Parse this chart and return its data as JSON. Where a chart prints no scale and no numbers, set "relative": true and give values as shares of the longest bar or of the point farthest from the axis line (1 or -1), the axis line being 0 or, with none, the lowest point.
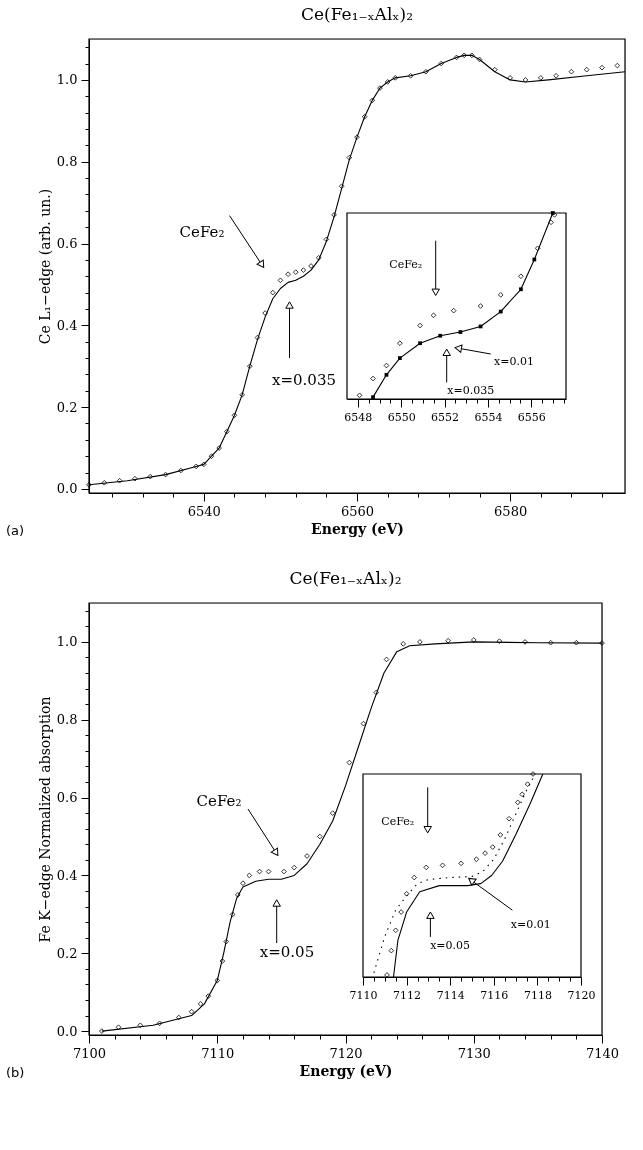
{
  "chart_data": [
    {
      "type": "line",
      "title": "Ce(Fe₁₋ₓAlₓ)₂",
      "xlabel": "Energy (eV)",
      "ylabel": "Ce L₁−edge (arb. un.)",
      "xlim": [
        6525,
        6595
      ],
      "ylim": [
        -0.01,
        1.1
      ],
      "xticks": [
        {
          "value": 6528,
          "label": null
        },
        {
          "value": 6532,
          "label": null
        },
        {
          "value": 6536,
          "label": null
        },
        6540,
        {
          "value": 6544,
          "label": null
        },
        {
          "value": 6548,
          "label": null
        },
        {
          "value": 6552,
          "label": null
        },
        {
          "value": 6556,
          "label": null
        },
        6560,
        {
          "value": 6564,
          "label": null
        },
        {
          "value": 6568,
          "label": null
        },
        {
          "value": 6572,
          "label": null
        },
        {
          "value": 6576,
          "label": null
        },
        6580,
        {
          "value": 6584,
          "label": null
        },
        {
          "value": 6588,
          "label": null
        },
        {
          "value": 6592,
          "label": null
        }
      ],
      "yticks": [
        {
          "value": 0,
          "label": "0.0"
        },
        {
          "value": 0.04,
          "label": null
        },
        {
          "value": 0.08,
          "label": null
        },
        {
          "value": 0.12,
          "label": null
        },
        {
          "value": 0.16,
          "label": null
        },
        0.2,
        {
          "value": 0.24,
          "label": null
        },
        {
          "value": 0.28,
          "label": null
        },
        {
          "value": 0.32,
          "label": null
        },
        {
          "value": 0.36,
          "label": null
        },
        0.4,
        {
          "value": 0.44,
          "label": null
        },
        {
          "value": 0.48,
          "label": null
        },
        {
          "value": 0.52,
          "label": null
        },
        {
          "value": 0.56,
          "label": null
        },
        0.6,
        {
          "value": 0.64,
          "label": null
        },
        {
          "value": 0.68,
          "label": null
        },
        {
          "value": 0.72,
          "label": null
        },
        {
          "value": 0.76,
          "label": null
        },
        0.8,
        {
          "value": 0.84,
          "label": null
        },
        {
          "value": 0.88,
          "label": null
        },
        {
          "value": 0.92,
          "label": null
        },
        {
          "value": 0.96,
          "label": null
        },
        {
          "value": 1,
          "label": "1.0"
        },
        {
          "value": 1.04,
          "label": null
        },
        {
          "value": 1.08,
          "label": null
        }
      ],
      "series": [
        {
          "type": "scatter",
          "marker": "diamond",
          "color": "#000000",
          "x": [
            6525,
            6527,
            6529,
            6531,
            6533,
            6535,
            6537,
            6539,
            6540,
            6541,
            6542,
            6543,
            6544,
            6545,
            6546,
            6547,
            6548,
            6549,
            6550,
            6551,
            6552,
            6553,
            6554,
            6555,
            6556,
            6557,
            6558,
            6559,
            6560,
            6561,
            6562,
            6563,
            6564,
            6565,
            6567,
            6569,
            6571,
            6573,
            6574,
            6575,
            6576,
            6578,
            6580,
            6582,
            6584,
            6586,
            6588,
            6590,
            6592,
            6594
          ],
          "values": [
            0.01,
            0.015,
            0.02,
            0.025,
            0.03,
            0.035,
            0.045,
            0.055,
            0.06,
            0.08,
            0.1,
            0.14,
            0.18,
            0.23,
            0.3,
            0.37,
            0.43,
            0.48,
            0.51,
            0.525,
            0.53,
            0.535,
            0.545,
            0.565,
            0.61,
            0.67,
            0.74,
            0.81,
            0.86,
            0.91,
            0.95,
            0.98,
            0.995,
            1.005,
            1.01,
            1.02,
            1.04,
            1.055,
            1.06,
            1.06,
            1.05,
            1.025,
            1.005,
            1.0,
            1.005,
            1.01,
            1.02,
            1.025,
            1.03,
            1.035
          ]
        },
        {
          "line_style": "solid",
          "color": "#000000",
          "x": [
            6525,
            6530,
            6535,
            6539,
            6540,
            6541,
            6542,
            6543,
            6544,
            6545,
            6546,
            6547,
            6548,
            6549,
            6550,
            6551,
            6552,
            6553,
            6554,
            6555,
            6556,
            6557,
            6558,
            6559,
            6560,
            6561,
            6562,
            6563,
            6564,
            6565,
            6567,
            6569,
            6571,
            6573,
            6574,
            6575,
            6576,
            6578,
            6580,
            6582,
            6585,
            6590,
            6595
          ],
          "values": [
            0.01,
            0.02,
            0.035,
            0.055,
            0.06,
            0.08,
            0.1,
            0.14,
            0.18,
            0.23,
            0.3,
            0.365,
            0.42,
            0.465,
            0.49,
            0.505,
            0.51,
            0.52,
            0.535,
            0.56,
            0.605,
            0.665,
            0.735,
            0.805,
            0.86,
            0.91,
            0.95,
            0.98,
            0.995,
            1.005,
            1.01,
            1.02,
            1.04,
            1.055,
            1.06,
            1.06,
            1.05,
            1.02,
            1.0,
            0.995,
            1.0,
            1.01,
            1.02
          ]
        }
      ],
      "annotations": [
        "CeFe₂",
        "x=0.035",
        "(a)"
      ]
    },
    {
      "type": "line",
      "relative": true,
      "xlim": [
        6547.5,
        6557.6
      ],
      "xticks": [
        6548,
        {
          "value": 6548.5,
          "label": null
        },
        {
          "value": 6549,
          "label": null
        },
        {
          "value": 6549.5,
          "label": null
        },
        6550,
        {
          "value": 6550.5,
          "label": null
        },
        {
          "value": 6551,
          "label": null
        },
        {
          "value": 6551.5,
          "label": null
        },
        6552,
        {
          "value": 6552.5,
          "label": null
        },
        {
          "value": 6553,
          "label": null
        },
        {
          "value": 6553.5,
          "label": null
        },
        6554,
        {
          "value": 6554.5,
          "label": null
        },
        {
          "value": 6555,
          "label": null
        },
        {
          "value": 6555.5,
          "label": null
        },
        6556,
        {
          "value": 6556.5,
          "label": null
        },
        {
          "value": 6557,
          "label": null
        },
        {
          "value": 6557.5,
          "label": null
        }
      ],
      "series": [
        {
          "type": "scatter",
          "marker": "diamond",
          "color": "#000000",
          "x": [
            6548.08,
            6548.7,
            6549.32,
            6549.94,
            6550.87,
            6551.49,
            6552.42,
            6553.66,
            6554.59,
            6555.52,
            6556.29,
            6556.91,
            6557.07
          ],
          "values": [
            0.02,
            0.11,
            0.18,
            0.3,
            0.395,
            0.45,
            0.475,
            0.5,
            0.56,
            0.66,
            0.81,
            0.95,
            0.99
          ]
        },
        {
          "line_style": "solid",
          "marker": "square",
          "color": "#000000",
          "x": [
            6548.7,
            6549.32,
            6549.94,
            6550.87,
            6551.8,
            6552.73,
            6553.66,
            6554.59,
            6555.52,
            6556.14,
            6556.99
          ],
          "values": [
            0.01,
            0.13,
            0.22,
            0.3,
            0.34,
            0.36,
            0.39,
            0.47,
            0.59,
            0.75,
            1.0
          ]
        }
      ],
      "annotations": [
        "CeFe₂",
        "x=0.035",
        "x=0.01"
      ]
    },
    {
      "type": "line",
      "title": "Ce(Fe₁₋ₓAlₓ)₂",
      "xlabel": "Energy (eV)",
      "ylabel": "Fe K−edge Normalized absorption",
      "xlim": [
        7100,
        7140
      ],
      "ylim": [
        -0.01,
        1.1
      ],
      "xticks": [
        7100,
        {
          "value": 7102,
          "label": null
        },
        {
          "value": 7104,
          "label": null
        },
        {
          "value": 7106,
          "label": null
        },
        {
          "value": 7108,
          "label": null
        },
        7110,
        {
          "value": 7112,
          "label": null
        },
        {
          "value": 7114,
          "label": null
        },
        {
          "value": 7116,
          "label": null
        },
        {
          "value": 7118,
          "label": null
        },
        7120,
        {
          "value": 7122,
          "label": null
        },
        {
          "value": 7124,
          "label": null
        },
        {
          "value": 7126,
          "label": null
        },
        {
          "value": 7128,
          "label": null
        },
        7130,
        {
          "value": 7132,
          "label": null
        },
        {
          "value": 7134,
          "label": null
        },
        {
          "value": 7136,
          "label": null
        },
        {
          "value": 7138,
          "label": null
        },
        7140
      ],
      "yticks": [
        {
          "value": 0,
          "label": "0.0"
        },
        {
          "value": 0.04,
          "label": null
        },
        {
          "value": 0.08,
          "label": null
        },
        {
          "value": 0.12,
          "label": null
        },
        {
          "value": 0.16,
          "label": null
        },
        0.2,
        {
          "value": 0.24,
          "label": null
        },
        {
          "value": 0.28,
          "label": null
        },
        {
          "value": 0.32,
          "label": null
        },
        {
          "value": 0.36,
          "label": null
        },
        0.4,
        {
          "value": 0.44,
          "label": null
        },
        {
          "value": 0.48,
          "label": null
        },
        {
          "value": 0.52,
          "label": null
        },
        {
          "value": 0.56,
          "label": null
        },
        0.6,
        {
          "value": 0.64,
          "label": null
        },
        {
          "value": 0.68,
          "label": null
        },
        {
          "value": 0.72,
          "label": null
        },
        {
          "value": 0.76,
          "label": null
        },
        0.8,
        {
          "value": 0.84,
          "label": null
        },
        {
          "value": 0.88,
          "label": null
        },
        {
          "value": 0.92,
          "label": null
        },
        {
          "value": 0.96,
          "label": null
        },
        {
          "value": 1,
          "label": "1.0"
        },
        {
          "value": 1.04,
          "label": null
        },
        {
          "value": 1.08,
          "label": null
        }
      ],
      "series": [
        {
          "type": "scatter",
          "marker": "diamond",
          "color": "#000000",
          "x": [
            7101,
            7102.3,
            7104,
            7105.5,
            7107,
            7108,
            7108.7,
            7109.3,
            7110,
            7110.4,
            7110.7,
            7111.2,
            7111.6,
            7112,
            7112.5,
            7113.3,
            7114,
            7115.2,
            7116,
            7117,
            7118,
            7119,
            7120.3,
            7121.4,
            7122.4,
            7123.2,
            7124.5,
            7125.8,
            7128,
            7130,
            7132,
            7134,
            7136,
            7138,
            7140
          ],
          "values": [
            0.0,
            0.01,
            0.015,
            0.02,
            0.035,
            0.05,
            0.07,
            0.09,
            0.13,
            0.18,
            0.23,
            0.3,
            0.35,
            0.38,
            0.4,
            0.41,
            0.41,
            0.41,
            0.42,
            0.45,
            0.5,
            0.56,
            0.69,
            0.79,
            0.87,
            0.955,
            0.995,
            1.0,
            1.003,
            1.005,
            1.002,
            1.0,
            0.998,
            0.998,
            0.997
          ]
        },
        {
          "line_style": "solid",
          "color": "#000000",
          "x": [
            7101,
            7105,
            7108,
            7109,
            7110,
            7110.5,
            7111,
            7111.5,
            7112,
            7113,
            7114,
            7115,
            7116,
            7117,
            7118,
            7119,
            7120,
            7121,
            7122,
            7123,
            7124,
            7125,
            7127,
            7130,
            7135,
            7140
          ],
          "values": [
            0.0,
            0.015,
            0.04,
            0.07,
            0.13,
            0.2,
            0.28,
            0.34,
            0.37,
            0.385,
            0.39,
            0.39,
            0.4,
            0.43,
            0.48,
            0.54,
            0.63,
            0.73,
            0.83,
            0.92,
            0.975,
            0.99,
            0.995,
            1.0,
            0.998,
            0.997
          ]
        }
      ],
      "annotations": [
        "CeFe₂",
        "x=0.05",
        "(b)"
      ]
    },
    {
      "type": "line",
      "relative": true,
      "xlim": [
        7110,
        7120
      ],
      "xticks": [
        7110,
        {
          "value": 7110.5,
          "label": null
        },
        {
          "value": 7111,
          "label": null
        },
        {
          "value": 7111.5,
          "label": null
        },
        7112,
        {
          "value": 7112.5,
          "label": null
        },
        {
          "value": 7113,
          "label": null
        },
        {
          "value": 7113.5,
          "label": null
        },
        7114,
        {
          "value": 7114.5,
          "label": null
        },
        {
          "value": 7115,
          "label": null
        },
        {
          "value": 7115.5,
          "label": null
        },
        7116,
        {
          "value": 7116.5,
          "label": null
        },
        {
          "value": 7117,
          "label": null
        },
        {
          "value": 7117.5,
          "label": null
        },
        7118,
        {
          "value": 7118.5,
          "label": null
        },
        {
          "value": 7119,
          "label": null
        },
        {
          "value": 7119.5,
          "label": null
        },
        7120
      ],
      "series": [
        {
          "type": "scatter",
          "marker": "diamond",
          "color": "#000000",
          "x": [
            7111.1,
            7111.3,
            7111.5,
            7111.75,
            7112.0,
            7112.35,
            7112.9,
            7113.65,
            7114.5,
            7115.2,
            7115.6,
            7115.95,
            7116.3,
            7116.7,
            7117.1,
            7117.3,
            7117.55,
            7117.8
          ],
          "values": [
            0.01,
            0.13,
            0.23,
            0.32,
            0.41,
            0.49,
            0.54,
            0.55,
            0.56,
            0.58,
            0.61,
            0.64,
            0.7,
            0.78,
            0.86,
            0.9,
            0.95,
            1.0
          ]
        },
        {
          "line_style": "dotted",
          "color": "#000000",
          "x": [
            7110.5,
            7111,
            7111.5,
            7112,
            7112.5,
            7113,
            7114,
            7115,
            7115.5,
            7116,
            7116.5,
            7117,
            7117.5,
            7117.8
          ],
          "values": [
            0.02,
            0.2,
            0.33,
            0.4,
            0.46,
            0.48,
            0.49,
            0.495,
            0.52,
            0.58,
            0.68,
            0.8,
            0.92,
            0.98
          ]
        },
        {
          "line_style": "solid",
          "color": "#000000",
          "x": [
            7111.4,
            7111.6,
            7112,
            7112.6,
            7113.5,
            7114.8,
            7115.4,
            7115.9,
            7116.4,
            7117,
            7117.65,
            7118.25
          ],
          "values": [
            0.0,
            0.18,
            0.32,
            0.42,
            0.45,
            0.45,
            0.46,
            0.5,
            0.57,
            0.7,
            0.85,
            1.0
          ]
        }
      ],
      "annotations": [
        "CeFe₂",
        "x=0.05",
        "x=0.01"
      ]
    }
  ]
}
